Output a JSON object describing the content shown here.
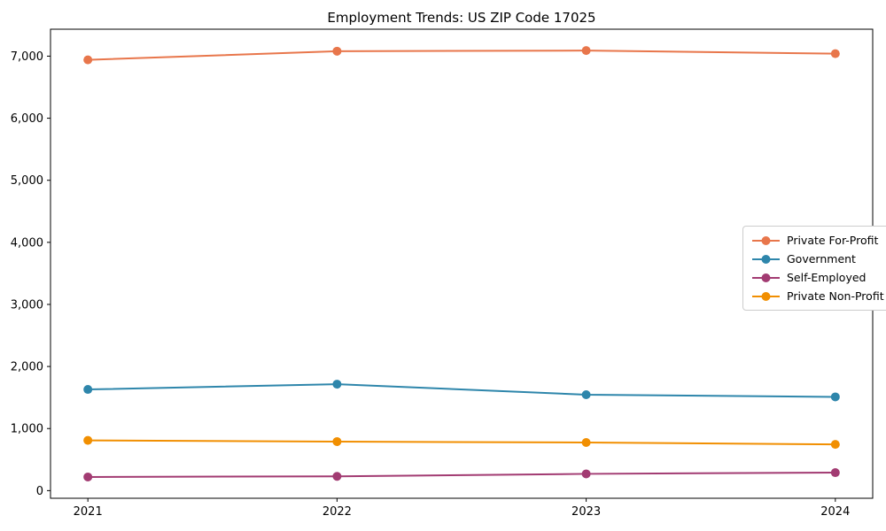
{
  "chart_data": {
    "type": "line",
    "title": "Employment Trends: US ZIP Code 17025",
    "x": [
      2021,
      2022,
      2023,
      2024
    ],
    "x_tick_labels": [
      "2021",
      "2022",
      "2023",
      "2024"
    ],
    "y_ticks": [
      0,
      1000,
      2000,
      3000,
      4000,
      5000,
      6000,
      7000
    ],
    "y_tick_labels": [
      "0",
      "1,000",
      "2,000",
      "3,000",
      "4,000",
      "5,000",
      "6,000",
      "7,000"
    ],
    "xlabel": "",
    "ylabel": "",
    "xlim": [
      2020.85,
      2024.15
    ],
    "ylim": [
      -123,
      7434
    ],
    "grid": false,
    "legend_position": "center-right",
    "series": [
      {
        "name": "Private For-Profit",
        "color": "#E8764B",
        "values": [
          6940,
          7080,
          7090,
          7040
        ]
      },
      {
        "name": "Government",
        "color": "#2E86AB",
        "values": [
          1630,
          1715,
          1545,
          1510
        ]
      },
      {
        "name": "Self-Employed",
        "color": "#A23B72",
        "values": [
          220,
          230,
          270,
          290
        ]
      },
      {
        "name": "Private Non-Profit",
        "color": "#F18F01",
        "values": [
          810,
          790,
          775,
          745
        ]
      }
    ]
  }
}
